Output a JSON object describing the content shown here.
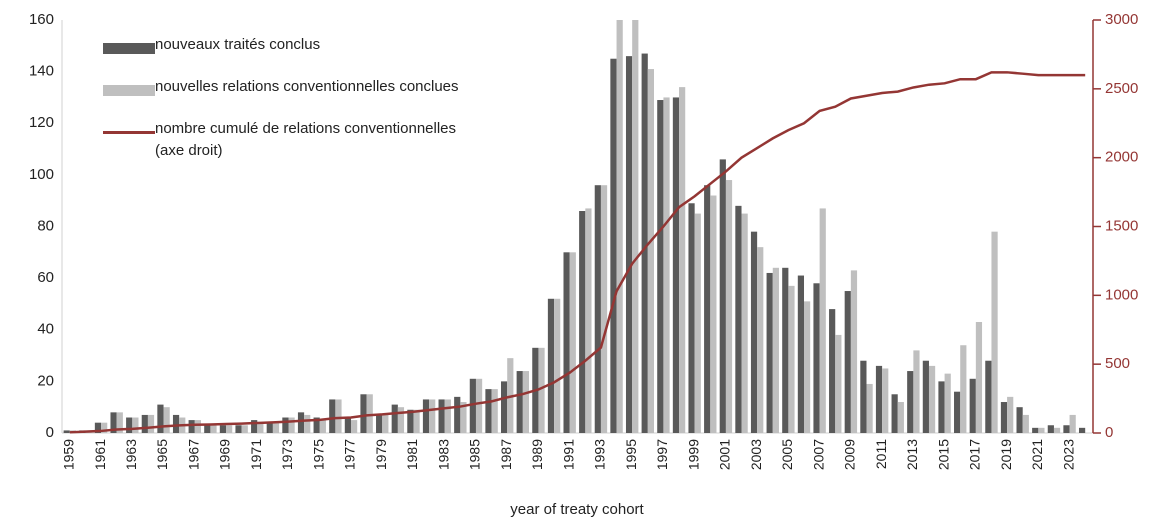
{
  "chart_data": {
    "type": "bar_line",
    "categories": [
      "1959",
      null,
      "1961",
      null,
      "1963",
      null,
      "1965",
      null,
      "1967",
      null,
      "1969",
      null,
      "1971",
      null,
      "1973",
      null,
      "1975",
      null,
      "1977",
      null,
      "1979",
      null,
      "1981",
      null,
      "1983",
      null,
      "1985",
      null,
      "1987",
      null,
      "1989",
      null,
      "1991",
      null,
      "1993",
      null,
      "1995",
      null,
      "1997",
      null,
      "1999",
      null,
      "2001",
      null,
      "2003",
      null,
      "2005",
      null,
      "2007",
      null,
      "2009",
      null,
      "2011",
      null,
      "2013",
      null,
      "2015",
      null,
      "2017",
      null,
      "2019",
      null,
      "2021",
      null,
      "2023",
      null
    ],
    "series": [
      {
        "name": "nouveaux traités conclus",
        "type": "bar",
        "color": "#595959",
        "values": [
          1,
          1,
          4,
          8,
          6,
          7,
          11,
          7,
          5,
          3,
          3,
          3,
          5,
          4,
          6,
          8,
          6,
          13,
          6,
          15,
          7,
          11,
          9,
          13,
          13,
          14,
          21,
          17,
          20,
          24,
          33,
          52,
          70,
          86,
          96,
          145,
          146,
          147,
          129,
          130,
          89,
          96,
          106,
          88,
          78,
          62,
          64,
          61,
          58,
          48,
          55,
          28,
          26,
          15,
          24,
          28,
          20,
          16,
          21,
          28,
          12,
          10,
          2,
          3,
          3,
          2
        ]
      },
      {
        "name": "nouvelles relations conventionnelles conclues",
        "type": "bar",
        "color": "#bfbfbf",
        "values": [
          1,
          1,
          4,
          8,
          6,
          7,
          10,
          6,
          5,
          3,
          3,
          3,
          4,
          4,
          6,
          7,
          5,
          13,
          5,
          15,
          7,
          10,
          9,
          13,
          13,
          12,
          21,
          17,
          29,
          24,
          33,
          52,
          70,
          87,
          96,
          170,
          170,
          141,
          130,
          134,
          85,
          92,
          98,
          85,
          72,
          64,
          57,
          51,
          87,
          38,
          63,
          19,
          25,
          12,
          32,
          26,
          23,
          34,
          43,
          78,
          14,
          7,
          2,
          2,
          7,
          0
        ]
      },
      {
        "name": "nombre cumulé de relations conventionnelles (axe droit)",
        "type": "line",
        "axis": "y2",
        "color": "#943634",
        "values": [
          5,
          10,
          15,
          25,
          30,
          38,
          48,
          55,
          60,
          62,
          65,
          68,
          73,
          77,
          83,
          90,
          95,
          108,
          113,
          128,
          135,
          145,
          154,
          167,
          180,
          192,
          213,
          230,
          259,
          283,
          316,
          368,
          438,
          525,
          621,
          1030,
          1230,
          1370,
          1500,
          1640,
          1720,
          1810,
          1900,
          2000,
          2070,
          2140,
          2200,
          2250,
          2340,
          2370,
          2430,
          2450,
          2470,
          2480,
          2510,
          2530,
          2540,
          2570,
          2570,
          2620,
          2620,
          2610,
          2600,
          2600,
          2600,
          2600
        ]
      }
    ],
    "xlabel": "year of treaty cohort",
    "ylim": [
      0,
      160
    ],
    "yticks": [
      0,
      20,
      40,
      60,
      80,
      100,
      120,
      140,
      160
    ],
    "y2lim": [
      0,
      3000
    ],
    "y2ticks": [
      0,
      500,
      1000,
      1500,
      2000,
      2500,
      3000
    ],
    "y2color": "#943634",
    "legend": "upper left"
  }
}
